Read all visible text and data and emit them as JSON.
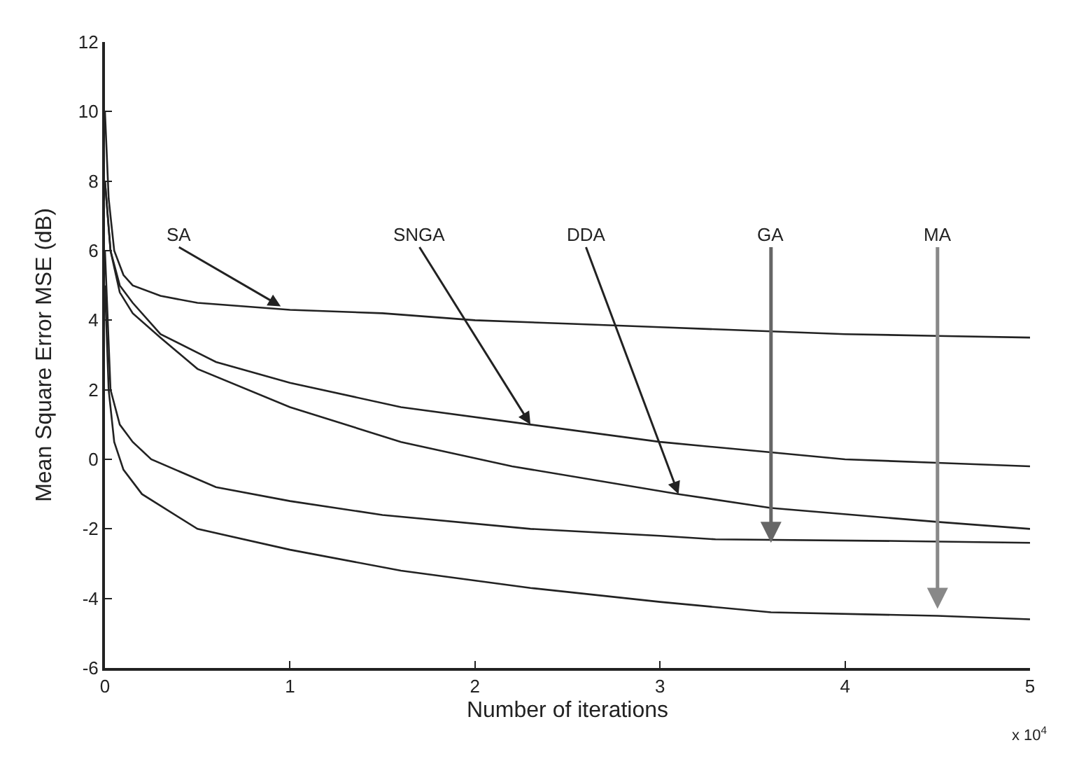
{
  "chart_data": {
    "type": "line",
    "xlabel": "Number of iterations",
    "ylabel": "Mean Square Error MSE (dB)",
    "xlim": [
      0,
      5
    ],
    "xticks": [
      0,
      1,
      2,
      3,
      4,
      5
    ],
    "ylim": [
      -6,
      12
    ],
    "yticks": [
      -6,
      -4,
      -2,
      0,
      2,
      4,
      6,
      8,
      10,
      12
    ],
    "marker": "none",
    "line_style": "solid",
    "series": [
      {
        "color": "#222222",
        "x": [
          0,
          0.02,
          0.05,
          0.1,
          0.15,
          0.3,
          0.5,
          1,
          1.5,
          2,
          2.5,
          3,
          3.5,
          4,
          4.5,
          5
        ],
        "values": [
          10,
          7.5,
          6,
          5.3,
          5,
          4.7,
          4.5,
          4.3,
          4.2,
          4.0,
          3.9,
          3.8,
          3.7,
          3.6,
          3.55,
          3.5
        ]
      },
      {
        "color": "#222222",
        "x": [
          0,
          0.03,
          0.08,
          0.15,
          0.3,
          0.6,
          1,
          1.6,
          2.3,
          3,
          3.6,
          4,
          4.5,
          5
        ],
        "values": [
          8,
          6,
          5,
          4.5,
          3.6,
          2.8,
          2.2,
          1.5,
          1.0,
          0.5,
          0.2,
          0,
          -0.1,
          -0.2
        ]
      },
      {
        "color": "#222222",
        "x": [
          0,
          0.03,
          0.08,
          0.15,
          0.3,
          0.5,
          1,
          1.6,
          2.2,
          3.1,
          3.6,
          4.5,
          5
        ],
        "values": [
          8,
          6,
          4.8,
          4.2,
          3.5,
          2.6,
          1.5,
          0.5,
          -0.2,
          -1,
          -1.4,
          -1.8,
          -2
        ]
      },
      {
        "color": "#222222",
        "x": [
          0,
          0.03,
          0.08,
          0.15,
          0.25,
          0.6,
          1,
          1.5,
          2.3,
          3,
          3.3,
          4.3,
          5
        ],
        "values": [
          6,
          2,
          1,
          0.5,
          0,
          -0.8,
          -1.2,
          -1.6,
          -2,
          -2.2,
          -2.3,
          -2.35,
          -2.4
        ]
      },
      {
        "color": "#222222",
        "x": [
          0,
          0.02,
          0.05,
          0.1,
          0.2,
          0.5,
          1,
          1.6,
          2.3,
          3,
          3.6,
          4.5,
          5
        ],
        "values": [
          5,
          2,
          0.5,
          -0.3,
          -1,
          -2,
          -2.6,
          -3.2,
          -3.7,
          -4.1,
          -4.4,
          -4.5,
          -4.6
        ]
      }
    ],
    "annotations": [
      {
        "text": "SA",
        "x": 0.95,
        "y": 4.4
      },
      {
        "text": "SNGA",
        "x": 2.3,
        "y": 1.0
      },
      {
        "text": "DDA",
        "x": 3.1,
        "y": -1.0
      },
      {
        "text": "GA",
        "x": 3.6,
        "y": -2.4
      },
      {
        "text": "MA",
        "x": 4.5,
        "y": -4.3
      },
      "x 10$^{4}$"
    ]
  }
}
